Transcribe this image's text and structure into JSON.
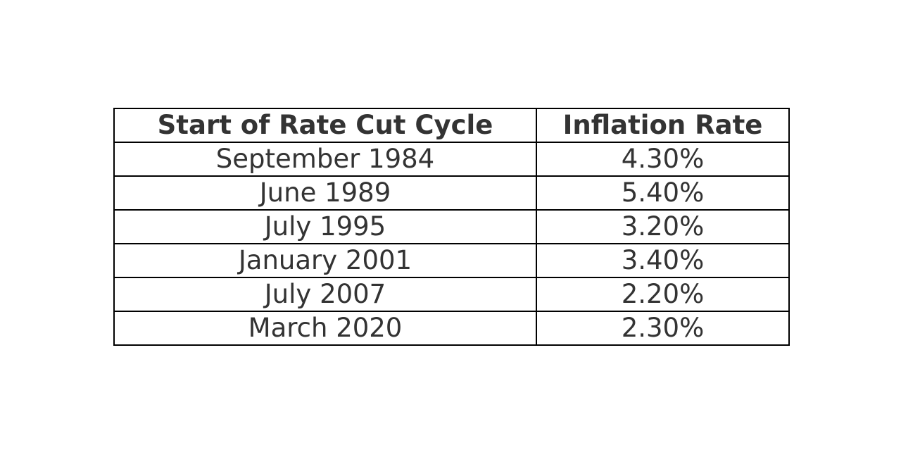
{
  "chart_data": {
    "type": "table",
    "columns": [
      "Start of Rate Cut Cycle",
      "Inflation Rate"
    ],
    "rows": [
      [
        "September 1984",
        "4.30%"
      ],
      [
        "June 1989",
        "5.40%"
      ],
      [
        "July 1995",
        "3.20%"
      ],
      [
        "January 2001",
        "3.40%"
      ],
      [
        "July 2007",
        "2.20%"
      ],
      [
        "March 2020",
        "2.30%"
      ]
    ],
    "values": [
      4.3,
      5.4,
      3.2,
      3.4,
      2.2,
      2.3
    ]
  },
  "colors": {
    "text": "#333333",
    "border": "#000000",
    "background": "#ffffff"
  }
}
